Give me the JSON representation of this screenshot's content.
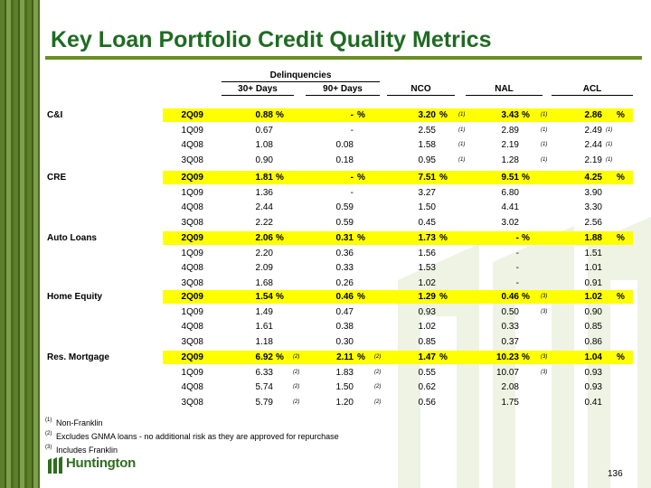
{
  "title": "Key Loan Portfolio Credit Quality Metrics",
  "headers": {
    "group": "Delinquencies",
    "d30": "30+ Days",
    "d90": "90+ Days",
    "nco": "NCO",
    "nal": "NAL",
    "acl": "ACL"
  },
  "pct": "%",
  "sections": [
    {
      "name": "C&I",
      "rows": [
        {
          "q": "2Q09",
          "d30": "0.88",
          "d30u": "%",
          "d30f": "",
          "d90": "-",
          "d90u": "%",
          "d90f": "",
          "nco": "3.20",
          "ncou": "%",
          "ncof": "(1)",
          "nal": "3.43",
          "nalu": "%",
          "nalf": "(1)",
          "acl": "2.86",
          "aclu": "%",
          "aclf": ""
        },
        {
          "q": "1Q09",
          "d30": "0.67",
          "d30u": "",
          "d30f": "",
          "d90": "-",
          "d90u": "",
          "d90f": "",
          "nco": "2.55",
          "ncou": "",
          "ncof": "(1)",
          "nal": "2.89",
          "nalu": "",
          "nalf": "(1)",
          "acl": "2.49",
          "aclu": "",
          "aclf": "(1)"
        },
        {
          "q": "4Q08",
          "d30": "1.08",
          "d30u": "",
          "d30f": "",
          "d90": "0.08",
          "d90u": "",
          "d90f": "",
          "nco": "1.58",
          "ncou": "",
          "ncof": "(1)",
          "nal": "2.19",
          "nalu": "",
          "nalf": "(1)",
          "acl": "2.44",
          "aclu": "",
          "aclf": "(1)"
        },
        {
          "q": "3Q08",
          "d30": "0.90",
          "d30u": "",
          "d30f": "",
          "d90": "0.18",
          "d90u": "",
          "d90f": "",
          "nco": "0.95",
          "ncou": "",
          "ncof": "(1)",
          "nal": "1.28",
          "nalu": "",
          "nalf": "(1)",
          "acl": "2.19",
          "aclu": "",
          "aclf": "(1)"
        }
      ]
    },
    {
      "name": "CRE",
      "rows": [
        {
          "q": "2Q09",
          "d30": "1.81",
          "d30u": "%",
          "d30f": "",
          "d90": "-",
          "d90u": "%",
          "d90f": "",
          "nco": "7.51",
          "ncou": "%",
          "ncof": "",
          "nal": "9.51",
          "nalu": "%",
          "nalf": "",
          "acl": "4.25",
          "aclu": "%",
          "aclf": ""
        },
        {
          "q": "1Q09",
          "d30": "1.36",
          "d30u": "",
          "d30f": "",
          "d90": "-",
          "d90u": "",
          "d90f": "",
          "nco": "3.27",
          "ncou": "",
          "ncof": "",
          "nal": "6.80",
          "nalu": "",
          "nalf": "",
          "acl": "3.90",
          "aclu": "",
          "aclf": ""
        },
        {
          "q": "4Q08",
          "d30": "2.44",
          "d30u": "",
          "d30f": "",
          "d90": "0.59",
          "d90u": "",
          "d90f": "",
          "nco": "1.50",
          "ncou": "",
          "ncof": "",
          "nal": "4.41",
          "nalu": "",
          "nalf": "",
          "acl": "3.30",
          "aclu": "",
          "aclf": ""
        },
        {
          "q": "3Q08",
          "d30": "2.22",
          "d30u": "",
          "d30f": "",
          "d90": "0.59",
          "d90u": "",
          "d90f": "",
          "nco": "0.45",
          "ncou": "",
          "ncof": "",
          "nal": "3.02",
          "nalu": "",
          "nalf": "",
          "acl": "2.56",
          "aclu": "",
          "aclf": ""
        }
      ]
    },
    {
      "name": "Auto Loans",
      "rows": [
        {
          "q": "2Q09",
          "d30": "2.06",
          "d30u": "%",
          "d30f": "",
          "d90": "0.31",
          "d90u": "%",
          "d90f": "",
          "nco": "1.73",
          "ncou": "%",
          "ncof": "",
          "nal": "-",
          "nalu": "%",
          "nalf": "",
          "acl": "1.88",
          "aclu": "%",
          "aclf": ""
        },
        {
          "q": "1Q09",
          "d30": "2.20",
          "d30u": "",
          "d30f": "",
          "d90": "0.36",
          "d90u": "",
          "d90f": "",
          "nco": "1.56",
          "ncou": "",
          "ncof": "",
          "nal": "-",
          "nalu": "",
          "nalf": "",
          "acl": "1.51",
          "aclu": "",
          "aclf": ""
        },
        {
          "q": "4Q08",
          "d30": "2.09",
          "d30u": "",
          "d30f": "",
          "d90": "0.33",
          "d90u": "",
          "d90f": "",
          "nco": "1.53",
          "ncou": "",
          "ncof": "",
          "nal": "-",
          "nalu": "",
          "nalf": "",
          "acl": "1.01",
          "aclu": "",
          "aclf": ""
        },
        {
          "q": "3Q08",
          "d30": "1.68",
          "d30u": "",
          "d30f": "",
          "d90": "0.26",
          "d90u": "",
          "d90f": "",
          "nco": "1.02",
          "ncou": "",
          "ncof": "",
          "nal": "-",
          "nalu": "",
          "nalf": "",
          "acl": "0.91",
          "aclu": "",
          "aclf": ""
        }
      ]
    },
    {
      "name": "Home Equity",
      "rows": [
        {
          "q": "2Q09",
          "d30": "1.54",
          "d30u": "%",
          "d30f": "",
          "d90": "0.46",
          "d90u": "%",
          "d90f": "",
          "nco": "1.29",
          "ncou": "%",
          "ncof": "",
          "nal": "0.46",
          "nalu": "%",
          "nalf": "(3)",
          "acl": "1.02",
          "aclu": "%",
          "aclf": ""
        },
        {
          "q": "1Q09",
          "d30": "1.49",
          "d30u": "",
          "d30f": "",
          "d90": "0.47",
          "d90u": "",
          "d90f": "",
          "nco": "0.93",
          "ncou": "",
          "ncof": "",
          "nal": "0.50",
          "nalu": "",
          "nalf": "(3)",
          "acl": "0.90",
          "aclu": "",
          "aclf": ""
        },
        {
          "q": "4Q08",
          "d30": "1.61",
          "d30u": "",
          "d30f": "",
          "d90": "0.38",
          "d90u": "",
          "d90f": "",
          "nco": "1.02",
          "ncou": "",
          "ncof": "",
          "nal": "0.33",
          "nalu": "",
          "nalf": "",
          "acl": "0.85",
          "aclu": "",
          "aclf": ""
        },
        {
          "q": "3Q08",
          "d30": "1.18",
          "d30u": "",
          "d30f": "",
          "d90": "0.30",
          "d90u": "",
          "d90f": "",
          "nco": "0.85",
          "ncou": "",
          "ncof": "",
          "nal": "0.37",
          "nalu": "",
          "nalf": "",
          "acl": "0.86",
          "aclu": "",
          "aclf": ""
        }
      ]
    },
    {
      "name": "Res. Mortgage",
      "rows": [
        {
          "q": "2Q09",
          "d30": "6.92",
          "d30u": "%",
          "d30f": "(2)",
          "d90": "2.11",
          "d90u": "%",
          "d90f": "(2)",
          "nco": "1.47",
          "ncou": "%",
          "ncof": "",
          "nal": "10.23",
          "nalu": "%",
          "nalf": "(3)",
          "acl": "1.04",
          "aclu": "%",
          "aclf": ""
        },
        {
          "q": "1Q09",
          "d30": "6.33",
          "d30u": "",
          "d30f": "(2)",
          "d90": "1.83",
          "d90u": "",
          "d90f": "(2)",
          "nco": "0.55",
          "ncou": "",
          "ncof": "",
          "nal": "10.07",
          "nalu": "",
          "nalf": "(3)",
          "acl": "0.93",
          "aclu": "",
          "aclf": ""
        },
        {
          "q": "4Q08",
          "d30": "5.74",
          "d30u": "",
          "d30f": "(2)",
          "d90": "1.50",
          "d90u": "",
          "d90f": "(2)",
          "nco": "0.62",
          "ncou": "",
          "ncof": "",
          "nal": "2.08",
          "nalu": "",
          "nalf": "",
          "acl": "0.93",
          "aclu": "",
          "aclf": ""
        },
        {
          "q": "3Q08",
          "d30": "5.79",
          "d30u": "",
          "d30f": "(2)",
          "d90": "1.20",
          "d90u": "",
          "d90f": "(2)",
          "nco": "0.56",
          "ncou": "",
          "ncof": "",
          "nal": "1.75",
          "nalu": "",
          "nalf": "",
          "acl": "0.41",
          "aclu": "",
          "aclf": ""
        }
      ]
    }
  ],
  "footnotes": [
    {
      "mark": "(1)",
      "text": "Non-Franklin"
    },
    {
      "mark": "(2)",
      "text": "Excludes GNMA loans - no additional risk as they are approved for repurchase"
    },
    {
      "mark": "(3)",
      "text": "Includes Franklin"
    }
  ],
  "logo_text": "Huntington",
  "page_number": "136",
  "colors": {
    "title": "#1f6b22",
    "rule": "#6b8e23",
    "highlight": "#ffff00"
  }
}
